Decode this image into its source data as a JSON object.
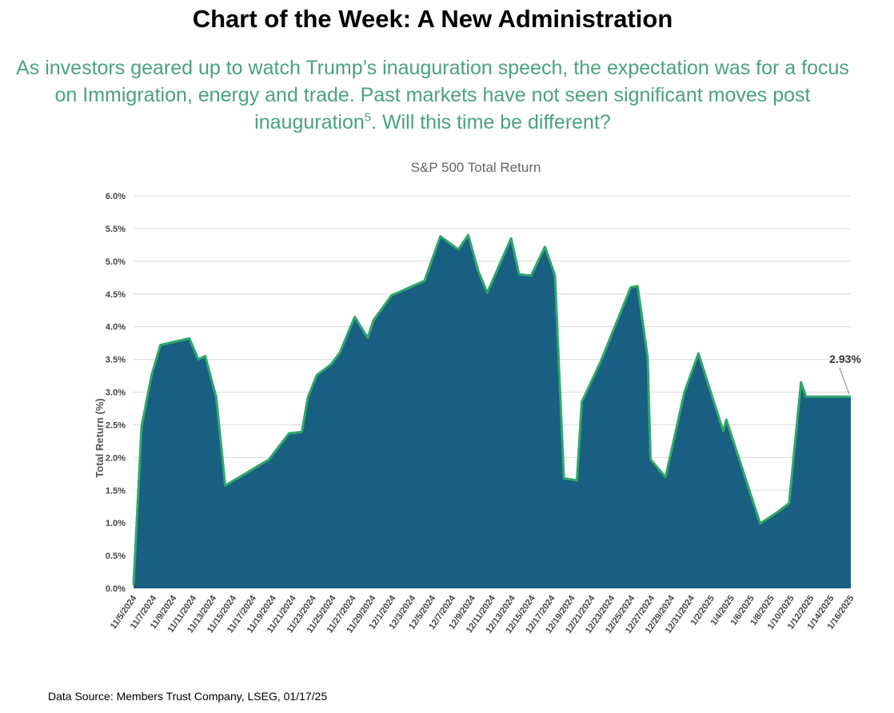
{
  "header": {
    "title": "Chart of the Week: A New Administration",
    "subtitle_main": "As investors geared up to watch Trump’s inauguration speech, the expectation was for a focus on Immigration, energy and trade. Past markets have not seen significant moves post inauguration",
    "subtitle_footnote": "5",
    "subtitle_end": ". Will this time be different?"
  },
  "footer": {
    "source": "Data Source: Members Trust Company, LSEG, 01/17/25"
  },
  "colors": {
    "area_fill": "#195f82",
    "line": "#2fa86a",
    "subtitle": "#4aa37a"
  },
  "chart_data": {
    "type": "area",
    "title": "S&P 500 Total Return",
    "xlabel": "",
    "ylabel": "Total Return (%)",
    "ylim": [
      0,
      6.0
    ],
    "yticks": [
      "0.0%",
      "0.5%",
      "1.0%",
      "1.5%",
      "2.0%",
      "2.5%",
      "3.0%",
      "3.5%",
      "4.0%",
      "4.5%",
      "5.0%",
      "5.5%",
      "6.0%"
    ],
    "ytick_values": [
      0,
      0.5,
      1.0,
      1.5,
      2.0,
      2.5,
      3.0,
      3.5,
      4.0,
      4.5,
      5.0,
      5.5,
      6.0
    ],
    "xticks": [
      "11/5/2024",
      "11/7/2024",
      "11/9/2024",
      "11/11/2024",
      "11/13/2024",
      "11/15/2024",
      "11/17/2024",
      "11/19/2024",
      "11/21/2024",
      "11/23/2024",
      "11/25/2024",
      "11/27/2024",
      "11/29/2024",
      "12/1/2024",
      "12/3/2024",
      "12/5/2024",
      "12/7/2024",
      "12/9/2024",
      "12/11/2024",
      "12/13/2024",
      "12/15/2024",
      "12/17/2024",
      "12/19/2024",
      "12/21/2024",
      "12/23/2024",
      "12/25/2024",
      "12/27/2024",
      "12/29/2024",
      "12/31/2024",
      "1/2/2025",
      "1/4/2025",
      "1/6/2025",
      "1/8/2025",
      "1/10/2025",
      "1/12/2025",
      "1/14/2025",
      "1/16/2025"
    ],
    "x_day_range": [
      0,
      72
    ],
    "series": [
      {
        "name": "S&P 500 Total Return",
        "x_days": [
          0,
          0.8,
          1.8,
          2.7,
          5.6,
          6.5,
          7.2,
          8.3,
          9.2,
          13.6,
          15.6,
          16.9,
          17.5,
          18.4,
          19.8,
          20.7,
          22.2,
          22.6,
          23.5,
          24.1,
          25.9,
          26.7,
          27.4,
          29.2,
          30.8,
          32.6,
          33.6,
          34.6,
          35.5,
          37.9,
          38.7,
          39.9,
          41.3,
          42.3,
          43.2,
          44.5,
          45.0,
          46.9,
          49.9,
          50.6,
          51.6,
          51.9,
          53.4,
          55.3,
          56.7,
          59.2,
          59.5,
          62.9,
          64.5,
          65.8,
          67.0,
          67.5,
          69.0,
          71.1,
          71.6,
          72.0
        ],
        "y": [
          0.05,
          2.47,
          3.25,
          3.72,
          3.82,
          3.5,
          3.55,
          2.92,
          1.57,
          1.97,
          2.37,
          2.39,
          2.92,
          3.26,
          3.42,
          3.6,
          4.15,
          4.05,
          3.83,
          4.1,
          4.48,
          4.53,
          4.58,
          4.7,
          5.38,
          5.18,
          5.4,
          4.85,
          4.52,
          5.35,
          4.8,
          4.78,
          5.22,
          4.78,
          1.68,
          1.65,
          2.85,
          3.47,
          4.6,
          4.62,
          3.53,
          1.97,
          1.7,
          3.0,
          3.59,
          2.4,
          2.58,
          0.99,
          1.15,
          1.3,
          3.15,
          2.93,
          2.93,
          2.93,
          2.93,
          2.93
        ]
      }
    ],
    "annotation": {
      "label": "2.93%",
      "value": 2.93
    },
    "grid": true,
    "legend": "none"
  }
}
